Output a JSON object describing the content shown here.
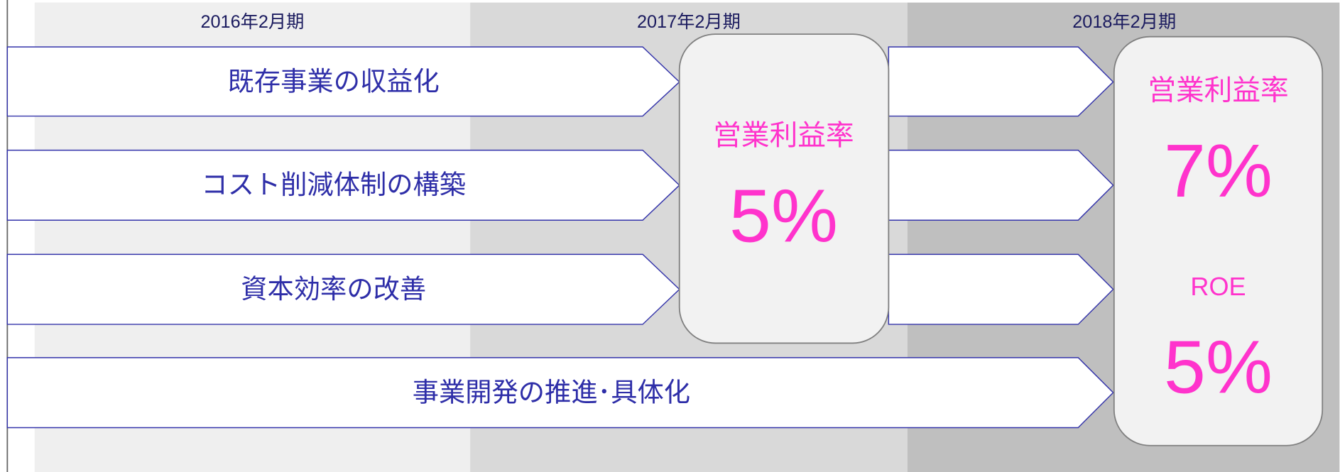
{
  "periods": [
    "2016年2月期",
    "2017年2月期",
    "2018年2月期"
  ],
  "initiatives": [
    "既存事業の収益化",
    "コスト削減体制の構築",
    "資本効率の改善",
    "事業開発の推進･具体化"
  ],
  "target_2017": {
    "metrics": [
      {
        "label": "営業利益率",
        "value": "5%"
      }
    ]
  },
  "target_2018": {
    "metrics": [
      {
        "label": "営業利益率",
        "value": "7%"
      },
      {
        "label": "ROE",
        "value": "5%"
      }
    ]
  }
}
